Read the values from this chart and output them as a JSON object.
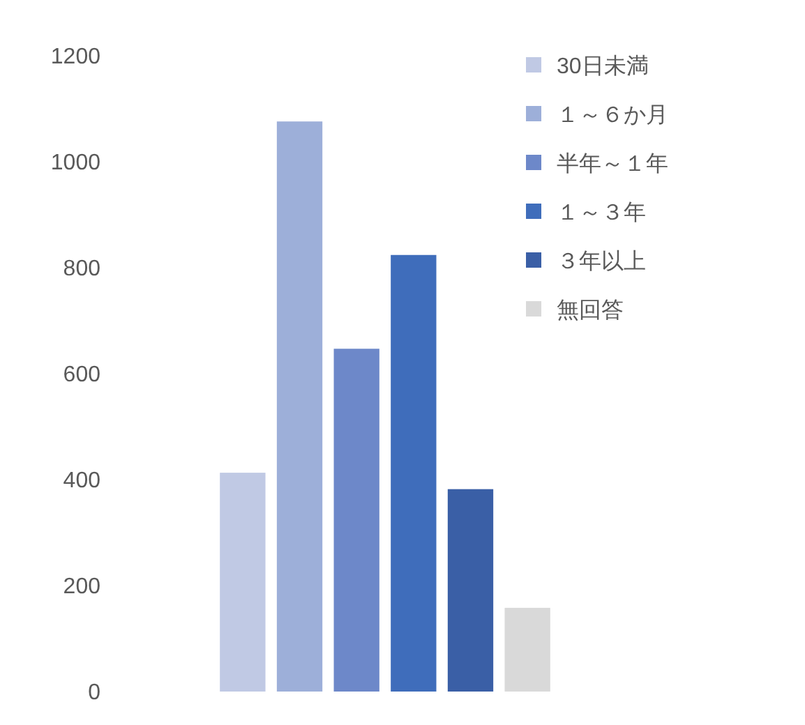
{
  "chart_data": {
    "type": "bar",
    "categories": [
      null
    ],
    "series": [
      {
        "name": "30日未満",
        "color": "#c0c9e4",
        "values": [
          413
        ]
      },
      {
        "name": "１～６か月",
        "color": "#9dafd9",
        "values": [
          1076
        ]
      },
      {
        "name": "半年～１年",
        "color": "#6d88c9",
        "values": [
          647
        ]
      },
      {
        "name": "１～３年",
        "color": "#3f6dbb",
        "values": [
          824
        ]
      },
      {
        "name": "３年以上",
        "color": "#3a5fa6",
        "values": [
          382
        ]
      },
      {
        "name": "無回答",
        "color": "#d9d9d9",
        "values": [
          158
        ]
      }
    ],
    "ylim": [
      0,
      1200
    ],
    "yticks": [
      0,
      200,
      400,
      600,
      800,
      1000,
      1200
    ],
    "grid": false,
    "legend": "top right"
  }
}
